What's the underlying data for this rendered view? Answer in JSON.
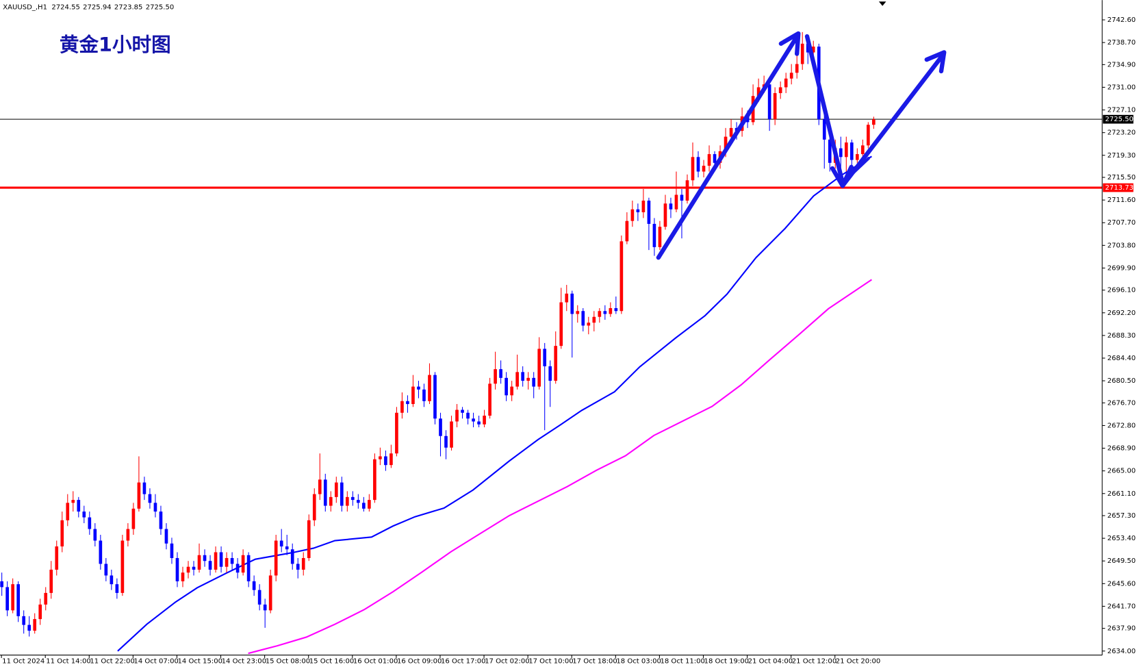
{
  "chart_data": {
    "type": "candlestick",
    "title": "黄金1小时图",
    "header": [
      "XAUUSD_,H1",
      "2724.55",
      "2725.94",
      "2723.85",
      "2725.50"
    ],
    "up_color": "#ff0000",
    "down_color": "#0000ff",
    "xlim": [
      0,
      201
    ],
    "ylim": [
      2633.3,
      2746.0
    ],
    "yticks": [
      {
        "value": 2742.6,
        "label": "2742.60"
      },
      {
        "value": 2738.7,
        "label": "2738.70"
      },
      {
        "value": 2734.9,
        "label": "2734.90"
      },
      {
        "value": 2731.0,
        "label": "2731.00"
      },
      {
        "value": 2727.1,
        "label": "2727.10"
      },
      {
        "value": 2723.2,
        "label": "2723.20"
      },
      {
        "value": 2719.3,
        "label": "2719.30"
      },
      {
        "value": 2715.5,
        "label": "2715.50"
      },
      {
        "value": 2711.6,
        "label": "2711.60"
      },
      {
        "value": 2707.7,
        "label": "2707.70"
      },
      {
        "value": 2703.8,
        "label": "2703.80"
      },
      {
        "value": 2699.9,
        "label": "2699.90"
      },
      {
        "value": 2696.1,
        "label": "2696.10"
      },
      {
        "value": 2692.2,
        "label": "2692.20"
      },
      {
        "value": 2688.3,
        "label": "2688.30"
      },
      {
        "value": 2684.4,
        "label": "2684.40"
      },
      {
        "value": 2680.5,
        "label": "2680.50"
      },
      {
        "value": 2676.7,
        "label": "2676.70"
      },
      {
        "value": 2672.8,
        "label": "2672.80"
      },
      {
        "value": 2668.9,
        "label": "2668.90"
      },
      {
        "value": 2665.0,
        "label": "2665.00"
      },
      {
        "value": 2661.1,
        "label": "2661.10"
      },
      {
        "value": 2657.3,
        "label": "2657.30"
      },
      {
        "value": 2653.4,
        "label": "2653.40"
      },
      {
        "value": 2649.5,
        "label": "2649.50"
      },
      {
        "value": 2645.6,
        "label": "2645.60"
      },
      {
        "value": 2641.7,
        "label": "2641.70"
      },
      {
        "value": 2637.9,
        "label": "2637.90"
      },
      {
        "value": 2634.0,
        "label": "2634.00"
      }
    ],
    "xticks": [
      {
        "value": 0,
        "label": "11 Oct 2024"
      },
      {
        "value": 8,
        "label": "11 Oct 14:00"
      },
      {
        "value": 16,
        "label": "11 Oct 22:00"
      },
      {
        "value": 24,
        "label": "14 Oct 07:00"
      },
      {
        "value": 32,
        "label": "14 Oct 15:00"
      },
      {
        "value": 40,
        "label": "14 Oct 23:00"
      },
      {
        "value": 48,
        "label": "15 Oct 08:00"
      },
      {
        "value": 56,
        "label": "15 Oct 16:00"
      },
      {
        "value": 64,
        "label": "16 Oct 01:00"
      },
      {
        "value": 72,
        "label": "16 Oct 09:00"
      },
      {
        "value": 80,
        "label": "16 Oct 17:00"
      },
      {
        "value": 88,
        "label": "17 Oct 02:00"
      },
      {
        "value": 96,
        "label": "17 Oct 10:00"
      },
      {
        "value": 104,
        "label": "17 Oct 18:00"
      },
      {
        "value": 112,
        "label": "18 Oct 03:00"
      },
      {
        "value": 120,
        "label": "18 Oct 11:00"
      },
      {
        "value": 128,
        "label": "18 Oct 19:00"
      },
      {
        "value": 136,
        "label": "21 Oct 04:00"
      },
      {
        "value": 144,
        "label": "21 Oct 12:00"
      },
      {
        "value": 152,
        "label": "21 Oct 20:00"
      }
    ],
    "price_line": {
      "value": 2725.5,
      "label": "2725.50",
      "color": "#000000"
    },
    "level_line": {
      "value": 2713.73,
      "label": "2713.73",
      "color": "#ff0000"
    },
    "series": [
      {
        "color": "#0000ff",
        "x": [
          21.2,
          26.5,
          31.7,
          35.7,
          41,
          46.3,
          52.9,
          56.9,
          60.8,
          67.5,
          71.4,
          75.4,
          80.7,
          86,
          92.6,
          97.9,
          101.9,
          105.8,
          111.8,
          116.4,
          123,
          128.3,
          132.3,
          137.6,
          142.9,
          148.1,
          153.4,
          158.7
        ],
        "values": [
          2634.0,
          2638.6,
          2642.4,
          2644.9,
          2647.4,
          2649.8,
          2650.9,
          2651.7,
          2653.0,
          2653.6,
          2655.5,
          2657.1,
          2658.6,
          2661.7,
          2666.7,
          2670.4,
          2672.9,
          2675.4,
          2678.6,
          2682.9,
          2687.9,
          2691.7,
          2695.4,
          2701.7,
          2706.7,
          2712.3,
          2716.0,
          2719.1
        ]
      },
      {
        "color": "#ff00ff",
        "x": [
          45,
          50.3,
          55.6,
          60.8,
          66.1,
          71.4,
          76.7,
          82,
          87.3,
          92.6,
          97.9,
          103.2,
          108.5,
          113.8,
          119,
          124.3,
          129.6,
          134.9,
          140.2,
          145.5,
          150.8,
          158.7
        ],
        "values": [
          2633.6,
          2634.9,
          2636.4,
          2638.6,
          2641.1,
          2644.2,
          2647.6,
          2651.1,
          2654.2,
          2657.3,
          2659.8,
          2662.3,
          2665.1,
          2667.6,
          2671.1,
          2673.6,
          2676.1,
          2679.8,
          2684.2,
          2688.5,
          2692.9,
          2697.9
        ]
      }
    ],
    "ohlc": [
      [
        2646.0,
        2647.5,
        2643.5,
        2645.0
      ],
      [
        2645.0,
        2646.0,
        2640.0,
        2641.0
      ],
      [
        2641.0,
        2646.5,
        2640.5,
        2645.5
      ],
      [
        2645.5,
        2646.0,
        2639.0,
        2640.0
      ],
      [
        2640.0,
        2641.0,
        2637.0,
        2638.5
      ],
      [
        2638.5,
        2640.0,
        2636.5,
        2637.5
      ],
      [
        2637.5,
        2640.5,
        2637.0,
        2639.5
      ],
      [
        2639.5,
        2643.0,
        2638.5,
        2642.0
      ],
      [
        2642.0,
        2645.0,
        2641.0,
        2644.0
      ],
      [
        2644.0,
        2649.5,
        2643.0,
        2648.0
      ],
      [
        2648.0,
        2653.0,
        2647.0,
        2652.0
      ],
      [
        2652.0,
        2658.0,
        2651.0,
        2656.5
      ],
      [
        2656.5,
        2661.0,
        2655.5,
        2659.5
      ],
      [
        2659.5,
        2661.5,
        2658.0,
        2660.0
      ],
      [
        2660.0,
        2660.5,
        2657.0,
        2658.0
      ],
      [
        2658.0,
        2659.0,
        2656.0,
        2657.0
      ],
      [
        2657.0,
        2658.0,
        2654.0,
        2655.0
      ],
      [
        2655.0,
        2656.0,
        2652.0,
        2653.0
      ],
      [
        2653.0,
        2654.0,
        2648.0,
        2649.0
      ],
      [
        2649.0,
        2650.0,
        2646.0,
        2647.0
      ],
      [
        2647.0,
        2648.0,
        2644.5,
        2645.5
      ],
      [
        2645.5,
        2646.5,
        2643.0,
        2644.0
      ],
      [
        2644.0,
        2654.0,
        2643.5,
        2653.0
      ],
      [
        2653.0,
        2656.0,
        2652.0,
        2655.0
      ],
      [
        2655.0,
        2659.5,
        2654.0,
        2658.5
      ],
      [
        2658.5,
        2667.5,
        2658.0,
        2663.0
      ],
      [
        2663.0,
        2664.0,
        2660.0,
        2661.0
      ],
      [
        2661.0,
        2662.0,
        2658.5,
        2659.5
      ],
      [
        2659.5,
        2661.0,
        2657.0,
        2658.0
      ],
      [
        2658.0,
        2659.0,
        2654.0,
        2655.0
      ],
      [
        2655.0,
        2656.0,
        2651.5,
        2652.5
      ],
      [
        2652.5,
        2653.5,
        2649.0,
        2650.0
      ],
      [
        2650.0,
        2651.0,
        2645.0,
        2646.0
      ],
      [
        2646.0,
        2648.5,
        2645.0,
        2647.5
      ],
      [
        2647.5,
        2649.5,
        2646.5,
        2648.5
      ],
      [
        2648.5,
        2649.5,
        2647.0,
        2648.0
      ],
      [
        2648.0,
        2652.5,
        2647.5,
        2650.5
      ],
      [
        2650.5,
        2651.5,
        2648.5,
        2649.5
      ],
      [
        2649.5,
        2650.5,
        2647.0,
        2648.0
      ],
      [
        2648.0,
        2652.0,
        2647.5,
        2651.0
      ],
      [
        2651.0,
        2652.0,
        2647.5,
        2648.5
      ],
      [
        2648.5,
        2651.0,
        2647.5,
        2650.0
      ],
      [
        2650.0,
        2651.0,
        2648.0,
        2649.0
      ],
      [
        2649.0,
        2650.0,
        2646.5,
        2647.5
      ],
      [
        2647.5,
        2651.5,
        2647.0,
        2650.5
      ],
      [
        2650.5,
        2651.0,
        2645.0,
        2646.0
      ],
      [
        2646.0,
        2647.0,
        2643.5,
        2644.5
      ],
      [
        2644.5,
        2645.5,
        2641.0,
        2642.0
      ],
      [
        2642.0,
        2643.0,
        2638.0,
        2641.0
      ],
      [
        2641.0,
        2648.0,
        2640.5,
        2647.0
      ],
      [
        2647.0,
        2654.0,
        2646.0,
        2653.0
      ],
      [
        2653.0,
        2655.0,
        2651.0,
        2652.0
      ],
      [
        2652.0,
        2654.0,
        2650.5,
        2651.5
      ],
      [
        2651.5,
        2652.5,
        2648.0,
        2649.0
      ],
      [
        2649.0,
        2650.0,
        2646.5,
        2648.0
      ],
      [
        2648.0,
        2651.0,
        2647.0,
        2650.0
      ],
      [
        2650.0,
        2657.5,
        2649.5,
        2656.5
      ],
      [
        2656.5,
        2662.0,
        2655.5,
        2661.0
      ],
      [
        2661.0,
        2668.0,
        2660.0,
        2663.5
      ],
      [
        2663.5,
        2664.5,
        2658.0,
        2659.0
      ],
      [
        2659.0,
        2661.5,
        2658.0,
        2660.5
      ],
      [
        2660.5,
        2664.0,
        2659.5,
        2663.0
      ],
      [
        2663.0,
        2664.0,
        2658.0,
        2659.0
      ],
      [
        2659.0,
        2661.5,
        2658.0,
        2660.5
      ],
      [
        2660.5,
        2661.5,
        2659.0,
        2660.0
      ],
      [
        2660.0,
        2661.0,
        2658.5,
        2659.5
      ],
      [
        2659.5,
        2660.5,
        2658.0,
        2658.5
      ],
      [
        2658.5,
        2661.0,
        2658.0,
        2660.0
      ],
      [
        2660.0,
        2668.0,
        2659.5,
        2667.0
      ],
      [
        2667.0,
        2669.0,
        2666.0,
        2667.5
      ],
      [
        2667.5,
        2668.5,
        2665.0,
        2666.0
      ],
      [
        2666.0,
        2669.5,
        2665.5,
        2668.0
      ],
      [
        2668.0,
        2676.0,
        2667.5,
        2675.0
      ],
      [
        2675.0,
        2678.5,
        2674.0,
        2677.0
      ],
      [
        2677.0,
        2678.0,
        2675.0,
        2676.5
      ],
      [
        2676.5,
        2681.5,
        2676.0,
        2679.5
      ],
      [
        2679.5,
        2680.5,
        2677.5,
        2679.0
      ],
      [
        2679.0,
        2680.0,
        2676.0,
        2677.0
      ],
      [
        2677.0,
        2683.5,
        2676.5,
        2681.5
      ],
      [
        2681.5,
        2682.0,
        2673.0,
        2674.0
      ],
      [
        2674.0,
        2675.0,
        2667.5,
        2671.0
      ],
      [
        2671.0,
        2672.0,
        2667.0,
        2669.0
      ],
      [
        2669.0,
        2674.5,
        2668.5,
        2673.5
      ],
      [
        2673.5,
        2676.5,
        2672.5,
        2675.5
      ],
      [
        2675.5,
        2676.0,
        2674.0,
        2675.0
      ],
      [
        2675.0,
        2675.5,
        2673.0,
        2674.0
      ],
      [
        2674.0,
        2675.0,
        2672.5,
        2673.5
      ],
      [
        2673.5,
        2674.5,
        2672.5,
        2673.0
      ],
      [
        2673.0,
        2675.5,
        2672.5,
        2674.5
      ],
      [
        2674.5,
        2681.0,
        2674.0,
        2680.0
      ],
      [
        2680.0,
        2685.5,
        2679.0,
        2682.5
      ],
      [
        2682.5,
        2684.0,
        2680.0,
        2681.0
      ],
      [
        2681.0,
        2682.0,
        2677.0,
        2678.0
      ],
      [
        2678.0,
        2680.5,
        2677.0,
        2679.5
      ],
      [
        2679.5,
        2685.0,
        2679.0,
        2682.0
      ],
      [
        2682.0,
        2683.0,
        2679.5,
        2680.5
      ],
      [
        2680.5,
        2682.0,
        2679.0,
        2681.0
      ],
      [
        2681.0,
        2682.0,
        2677.5,
        2679.5
      ],
      [
        2679.5,
        2688.0,
        2679.0,
        2686.0
      ],
      [
        2686.0,
        2687.0,
        2672.0,
        2683.0
      ],
      [
        2683.0,
        2684.0,
        2676.0,
        2680.5
      ],
      [
        2680.5,
        2689.0,
        2680.0,
        2686.5
      ],
      [
        2686.5,
        2696.5,
        2686.0,
        2694.0
      ],
      [
        2694.0,
        2697.0,
        2692.5,
        2695.5
      ],
      [
        2695.5,
        2696.0,
        2684.5,
        2692.0
      ],
      [
        2692.0,
        2693.5,
        2690.5,
        2692.5
      ],
      [
        2692.5,
        2693.0,
        2689.0,
        2690.0
      ],
      [
        2690.0,
        2691.5,
        2688.5,
        2690.5
      ],
      [
        2690.5,
        2692.5,
        2689.0,
        2691.5
      ],
      [
        2691.5,
        2693.0,
        2690.5,
        2692.5
      ],
      [
        2692.5,
        2693.5,
        2691.0,
        2692.0
      ],
      [
        2692.0,
        2694.0,
        2691.5,
        2693.0
      ],
      [
        2693.0,
        2695.0,
        2692.0,
        2692.5
      ],
      [
        2692.5,
        2705.5,
        2692.0,
        2704.5
      ],
      [
        2704.5,
        2709.5,
        2704.0,
        2708.0
      ],
      [
        2708.0,
        2711.5,
        2707.0,
        2710.0
      ],
      [
        2710.0,
        2711.0,
        2708.0,
        2709.5
      ],
      [
        2709.5,
        2713.5,
        2708.5,
        2711.5
      ],
      [
        2711.5,
        2712.0,
        2703.0,
        2707.5
      ],
      [
        2707.5,
        2708.5,
        2702.0,
        2703.5
      ],
      [
        2703.5,
        2708.0,
        2703.0,
        2707.0
      ],
      [
        2707.0,
        2712.5,
        2706.5,
        2711.0
      ],
      [
        2711.0,
        2712.0,
        2708.5,
        2710.0
      ],
      [
        2710.0,
        2716.5,
        2709.5,
        2712.5
      ],
      [
        2712.5,
        2713.5,
        2705.0,
        2711.5
      ],
      [
        2711.5,
        2716.0,
        2711.0,
        2715.0
      ],
      [
        2715.0,
        2721.5,
        2714.0,
        2719.0
      ],
      [
        2719.0,
        2720.0,
        2715.5,
        2716.5
      ],
      [
        2716.5,
        2718.5,
        2715.5,
        2717.5
      ],
      [
        2717.5,
        2721.0,
        2716.5,
        2719.5
      ],
      [
        2719.5,
        2720.0,
        2716.5,
        2718.0
      ],
      [
        2718.0,
        2721.0,
        2717.0,
        2720.0
      ],
      [
        2720.0,
        2724.0,
        2719.0,
        2722.5
      ],
      [
        2722.5,
        2725.5,
        2721.5,
        2724.0
      ],
      [
        2724.0,
        2725.0,
        2722.0,
        2723.5
      ],
      [
        2723.5,
        2727.5,
        2722.5,
        2726.0
      ],
      [
        2726.0,
        2727.0,
        2724.0,
        2725.0
      ],
      [
        2725.0,
        2731.5,
        2724.5,
        2729.5
      ],
      [
        2729.5,
        2732.5,
        2728.5,
        2731.0
      ],
      [
        2731.0,
        2733.0,
        2730.0,
        2731.5
      ],
      [
        2731.5,
        2732.0,
        2723.5,
        2725.5
      ],
      [
        2725.5,
        2731.0,
        2724.5,
        2730.0
      ],
      [
        2730.0,
        2732.0,
        2729.0,
        2731.0
      ],
      [
        2731.0,
        2733.5,
        2730.0,
        2732.5
      ],
      [
        2732.5,
        2735.0,
        2731.5,
        2733.5
      ],
      [
        2733.5,
        2737.5,
        2732.5,
        2735.0
      ],
      [
        2735.0,
        2740.5,
        2734.0,
        2738.5
      ],
      [
        2738.5,
        2739.5,
        2735.0,
        2737.0
      ],
      [
        2737.0,
        2739.0,
        2736.0,
        2738.0
      ],
      [
        2738.0,
        2738.5,
        2724.5,
        2725.5
      ],
      [
        2725.5,
        2727.0,
        2717.0,
        2722.0
      ],
      [
        2722.0,
        2723.0,
        2716.5,
        2718.0
      ],
      [
        2718.0,
        2722.0,
        2717.0,
        2720.5
      ],
      [
        2720.5,
        2722.5,
        2715.0,
        2719.0
      ],
      [
        2719.0,
        2722.5,
        2716.5,
        2721.5
      ],
      [
        2721.5,
        2722.0,
        2717.5,
        2718.5
      ],
      [
        2718.5,
        2720.5,
        2718.0,
        2719.5
      ],
      [
        2719.5,
        2722.0,
        2719.0,
        2721.0
      ],
      [
        2721.0,
        2725.0,
        2720.5,
        2724.55
      ],
      [
        2724.55,
        2725.94,
        2723.85,
        2725.5
      ]
    ]
  }
}
